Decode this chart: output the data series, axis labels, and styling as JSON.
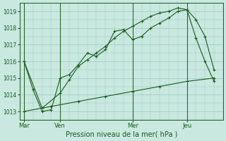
{
  "title": "Pression niveau de la mer( hPa )",
  "bg_color": "#c8e8e0",
  "grid_color": "#99ccbb",
  "line_color": "#1a5c1a",
  "ylim": [
    1012.5,
    1019.5
  ],
  "yticks": [
    1013,
    1014,
    1015,
    1016,
    1017,
    1018,
    1019
  ],
  "day_labels": [
    "Mar",
    "Ven",
    "Mer",
    "Jeu"
  ],
  "day_positions": [
    0,
    4,
    12,
    18
  ],
  "vline_positions": [
    0,
    4,
    12,
    18
  ],
  "line1_x": [
    0,
    1,
    2,
    3,
    4,
    5,
    6,
    7,
    8,
    9,
    10,
    11,
    12,
    13,
    14,
    15,
    16,
    17,
    18,
    19,
    20,
    21
  ],
  "line1_y": [
    1016.0,
    1014.3,
    1013.0,
    1013.1,
    1015.0,
    1015.2,
    1015.8,
    1016.5,
    1016.3,
    1016.7,
    1017.8,
    1017.9,
    1017.3,
    1017.5,
    1018.0,
    1018.3,
    1018.6,
    1019.0,
    1019.1,
    1018.5,
    1017.5,
    1015.5
  ],
  "line2_x": [
    0,
    2,
    4,
    5,
    6,
    7,
    8,
    9,
    10,
    11,
    12,
    13,
    14,
    15,
    16,
    17,
    18,
    19,
    20,
    21
  ],
  "line2_y": [
    1016.0,
    1013.2,
    1014.1,
    1014.9,
    1015.7,
    1016.1,
    1016.5,
    1016.9,
    1017.4,
    1017.8,
    1018.1,
    1018.4,
    1018.7,
    1018.9,
    1019.0,
    1019.2,
    1019.1,
    1017.4,
    1016.0,
    1014.8
  ],
  "line3_x": [
    0,
    3,
    6,
    9,
    12,
    15,
    18,
    21
  ],
  "line3_y": [
    1013.0,
    1013.3,
    1013.6,
    1013.9,
    1014.2,
    1014.5,
    1014.8,
    1015.0
  ],
  "xmax": 22
}
